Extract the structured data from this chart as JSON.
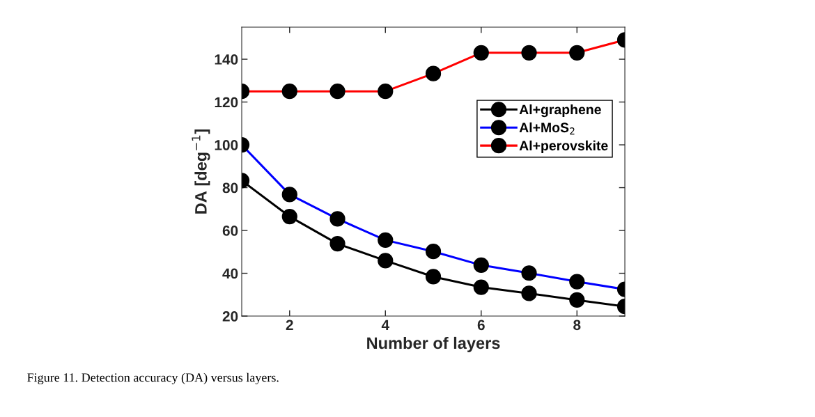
{
  "chart_data": {
    "type": "line",
    "xlabel": "Number of layers",
    "ylabel": "DA [deg$^{−1}$]",
    "x": [
      1,
      2,
      3,
      4,
      5,
      6,
      7,
      8,
      9
    ],
    "series": [
      {
        "name": "Al+graphene",
        "color": "#000000",
        "values": [
          83.3,
          66.5,
          53.8,
          45.9,
          38.4,
          33.5,
          30.6,
          27.5,
          24.5
        ]
      },
      {
        "name": "Al+MoS$_{2}$",
        "color": "#0000ff",
        "values": [
          100,
          76.8,
          65.4,
          55.5,
          50.2,
          43.8,
          40.1,
          36.1,
          32.5
        ]
      },
      {
        "name": "Al+perovskite",
        "color": "#ff0000",
        "values": [
          125,
          125,
          125,
          125,
          133.3,
          143,
          143,
          143,
          149
        ]
      }
    ],
    "marker": "circle",
    "line_style": "solid",
    "legend": "top right",
    "grid": false,
    "xlim": [
      1,
      9
    ],
    "xticks": [
      2,
      4,
      6,
      8
    ],
    "ylim": [
      20,
      155
    ],
    "yticks": [
      20,
      40,
      60,
      80,
      100,
      120,
      140
    ],
    "annotations": [
      "Figure 11. Detection accuracy (DA) versus layers."
    ]
  }
}
